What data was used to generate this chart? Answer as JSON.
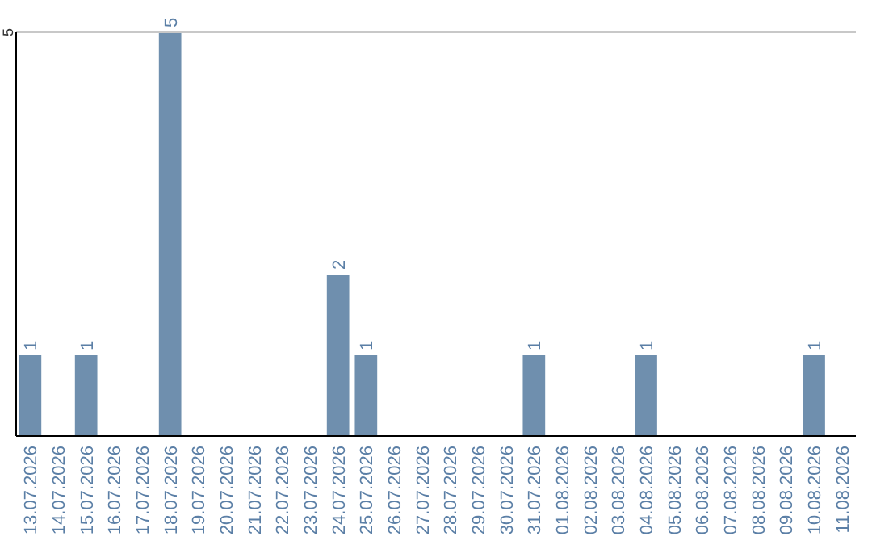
{
  "chart_data": {
    "type": "bar",
    "categories": [
      "13.07.2026",
      "14.07.2026",
      "15.07.2026",
      "16.07.2026",
      "17.07.2026",
      "18.07.2026",
      "19.07.2026",
      "20.07.2026",
      "21.07.2026",
      "22.07.2026",
      "23.07.2026",
      "24.07.2026",
      "25.07.2026",
      "26.07.2026",
      "27.07.2026",
      "28.07.2026",
      "29.07.2026",
      "30.07.2026",
      "31.07.2026",
      "01.08.2026",
      "02.08.2026",
      "03.08.2026",
      "04.08.2026",
      "05.08.2026",
      "06.08.2026",
      "07.08.2026",
      "08.08.2026",
      "09.08.2026",
      "10.08.2026",
      "11.08.2026"
    ],
    "values": [
      1,
      0,
      1,
      0,
      0,
      5,
      0,
      0,
      0,
      0,
      0,
      2,
      1,
      0,
      0,
      0,
      0,
      0,
      1,
      0,
      0,
      0,
      1,
      0,
      0,
      0,
      0,
      0,
      1,
      0
    ],
    "value_labels": [
      "1",
      null,
      "1",
      null,
      null,
      "5",
      null,
      null,
      null,
      null,
      null,
      "2",
      "1",
      null,
      null,
      null,
      null,
      null,
      "1",
      null,
      null,
      null,
      "1",
      null,
      null,
      null,
      null,
      null,
      "1",
      null
    ],
    "color": "#6f8fae",
    "ylim": [
      0,
      5
    ],
    "yticks": [
      5
    ]
  }
}
